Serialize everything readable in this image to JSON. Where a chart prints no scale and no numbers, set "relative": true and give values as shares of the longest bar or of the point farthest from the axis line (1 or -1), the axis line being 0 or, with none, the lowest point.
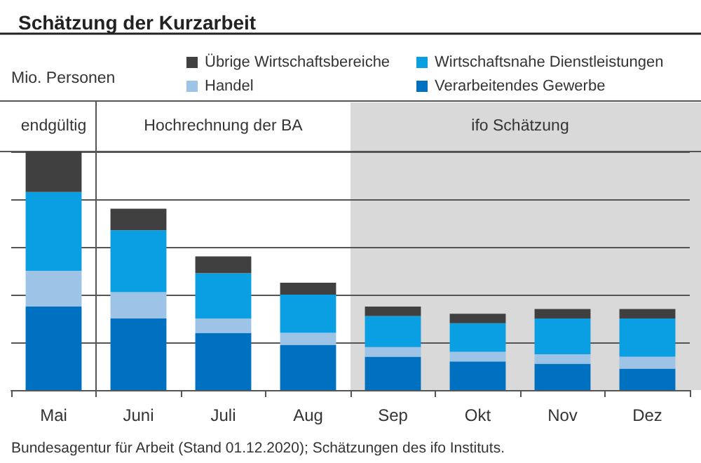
{
  "chart_data": {
    "type": "bar",
    "title": "Schätzung der Kurzarbeit",
    "ylabel": "Mio. Personen",
    "relative": true,
    "stacked": true,
    "grid": "y",
    "legend": "top right",
    "categories": [
      "Mai",
      "Juni",
      "Juli",
      "Aug",
      "Sep",
      "Okt",
      "Nov",
      "Dez"
    ],
    "series": [
      {
        "name": "Verarbeitendes Gewerbe",
        "color": "#0070c0",
        "values": [
          0.35,
          0.3,
          0.24,
          0.19,
          0.14,
          0.12,
          0.11,
          0.09
        ]
      },
      {
        "name": "Handel",
        "color": "#9dc3e6",
        "values": [
          0.15,
          0.11,
          0.06,
          0.05,
          0.04,
          0.04,
          0.04,
          0.05
        ]
      },
      {
        "name": "Wirtschaftsnahe Dienstleistungen",
        "color": "#0a9ee2",
        "values": [
          0.33,
          0.26,
          0.19,
          0.16,
          0.13,
          0.12,
          0.15,
          0.16
        ]
      },
      {
        "name": "Übrige Wirtschaftsbereiche",
        "color": "#404040",
        "values": [
          0.17,
          0.09,
          0.07,
          0.05,
          0.04,
          0.04,
          0.04,
          0.04
        ]
      }
    ],
    "bands": [
      {
        "axis": "x",
        "from": "Sep",
        "to": "Dez",
        "label": "ifo Schätzung",
        "color": "#d9d9d9"
      }
    ],
    "annotations": [
      "endgültig",
      "Hochrechnung der BA",
      "Bundesagentur für Arbeit (Stand 01.12.2020); Schätzungen des ifo Instituts."
    ]
  }
}
